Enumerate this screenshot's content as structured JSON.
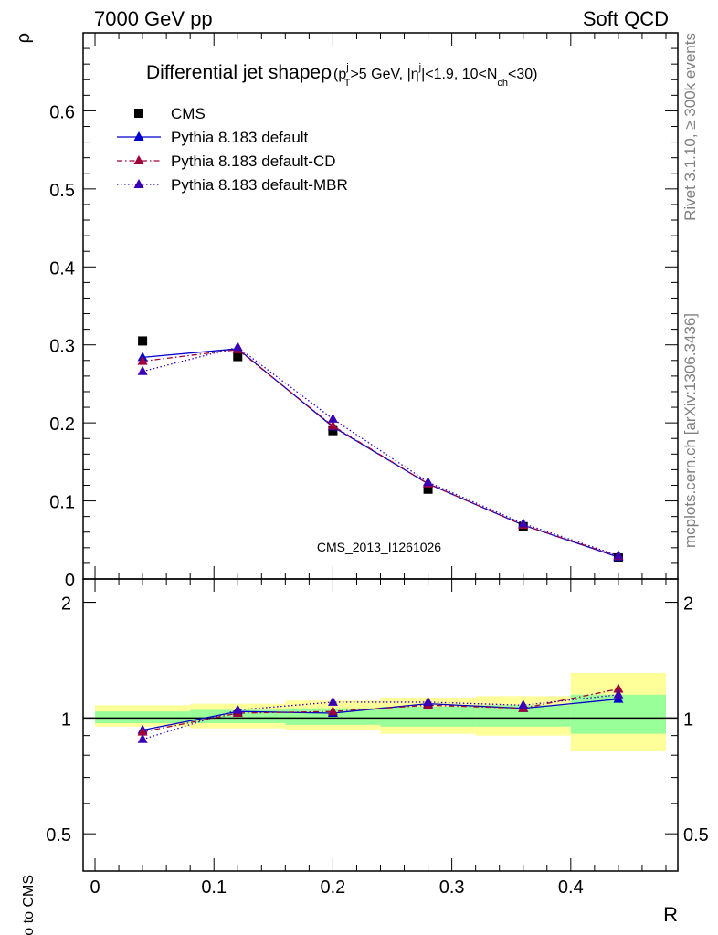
{
  "header": {
    "energy_label": "7000 GeV pp",
    "category_label": "Soft QCD"
  },
  "side": {
    "rivet_label": "Rivet 3.1.10, ≥ 300k events",
    "source_label": "mcplots.cern.ch [arXiv:1306.3436]"
  },
  "colors": {
    "cms": "#000000",
    "default": "#0000cc",
    "cd": "#a0003a",
    "mbr": "#3a00b4",
    "band_inner": "#99ff99",
    "band_outer": "#ffff99"
  },
  "chart_data": [
    {
      "type": "scatter",
      "title_main": "Differential jet shape",
      "title_rho": "ρ",
      "title_cuts": {
        "p1": "(p",
        "pT_sup": "j",
        "pT_sub": "T",
        "p2": ">5 GeV, |η",
        "eta_sup": "j",
        "p3": "|<1.9, 10<N",
        "nch_sub": "ch",
        "p4": "<30)"
      },
      "ylabel": "ρ",
      "xlabel": "R",
      "watermark": "CMS_2013_I1261026",
      "xlim": [
        -0.01,
        0.49
      ],
      "ylim": [
        0,
        0.7
      ],
      "yticks": [
        0,
        0.1,
        0.2,
        0.3,
        0.4,
        0.5,
        0.6
      ],
      "ytick_labels": [
        "0",
        "0.1",
        "0.2",
        "0.3",
        "0.4",
        "0.5",
        "0.6"
      ],
      "x": [
        0.04,
        0.12,
        0.2,
        0.28,
        0.36,
        0.44
      ],
      "series": [
        {
          "name": "CMS",
          "key": "cms",
          "style": "data",
          "values": [
            0.305,
            0.285,
            0.19,
            0.115,
            0.067,
            0.027
          ]
        },
        {
          "name": "Pythia 8.183 default",
          "key": "default",
          "style": "solid",
          "values": [
            0.284,
            0.295,
            0.195,
            0.122,
            0.069,
            0.028
          ]
        },
        {
          "name": "Pythia 8.183 default-CD",
          "key": "cd",
          "style": "dashdot",
          "values": [
            0.279,
            0.294,
            0.196,
            0.122,
            0.069,
            0.029
          ]
        },
        {
          "name": "Pythia 8.183 default-MBR",
          "key": "mbr",
          "style": "dotted",
          "values": [
            0.266,
            0.297,
            0.205,
            0.124,
            0.071,
            0.03
          ]
        }
      ]
    },
    {
      "type": "line",
      "ylabel": "Ratio to CMS",
      "xlabel": "R",
      "xlim": [
        -0.01,
        0.49
      ],
      "ylim": [
        0.4,
        2.3
      ],
      "yscale": "log",
      "yticks": [
        0.5,
        1,
        2
      ],
      "ytick_labels": [
        "0.5",
        "1",
        "2"
      ],
      "xticks": [
        0,
        0.1,
        0.2,
        0.3,
        0.4
      ],
      "xtick_labels": [
        "0",
        "0.1",
        "0.2",
        "0.3",
        "0.4"
      ],
      "x": [
        0.04,
        0.12,
        0.2,
        0.28,
        0.36,
        0.44
      ],
      "bin_edges": [
        0,
        0.08,
        0.16,
        0.24,
        0.32,
        0.4,
        0.48
      ],
      "band_inner": [
        [
          0.97,
          1.04
        ],
        [
          0.97,
          1.05
        ],
        [
          0.96,
          1.06
        ],
        [
          0.95,
          1.07
        ],
        [
          0.95,
          1.08
        ],
        [
          0.91,
          1.15
        ]
      ],
      "band_outer": [
        [
          0.95,
          1.08
        ],
        [
          0.94,
          1.09
        ],
        [
          0.93,
          1.11
        ],
        [
          0.91,
          1.13
        ],
        [
          0.9,
          1.14
        ],
        [
          0.82,
          1.31
        ]
      ],
      "series": [
        {
          "name": "Pythia 8.183 default",
          "key": "default",
          "style": "solid",
          "values": [
            0.93,
            1.04,
            1.03,
            1.09,
            1.06,
            1.12
          ]
        },
        {
          "name": "Pythia 8.183 default-CD",
          "key": "cd",
          "style": "dashdot",
          "values": [
            0.92,
            1.03,
            1.04,
            1.08,
            1.06,
            1.19
          ]
        },
        {
          "name": "Pythia 8.183 default-MBR",
          "key": "mbr",
          "style": "dotted",
          "values": [
            0.88,
            1.05,
            1.1,
            1.1,
            1.08,
            1.15
          ]
        }
      ]
    }
  ]
}
